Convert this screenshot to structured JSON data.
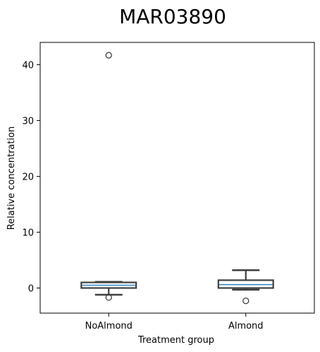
{
  "chart_data": {
    "type": "box",
    "title": "MAR03890",
    "xlabel": "Treatment group",
    "ylabel": "Relative concentration",
    "categories": [
      "NoAlmond",
      "Almond"
    ],
    "yticks": [
      0,
      10,
      20,
      30,
      40
    ],
    "ylim": [
      -4.5,
      44
    ],
    "grid": false,
    "legend": "none",
    "boxes": [
      {
        "category": "NoAlmond",
        "whisker_low": -1.2,
        "q1": 0.0,
        "median": 0.5,
        "q3": 1.0,
        "whisker_high": 1.1,
        "outliers": [
          41.7,
          -1.7
        ]
      },
      {
        "category": "Almond",
        "whisker_low": -0.3,
        "q1": 0.0,
        "median": 0.6,
        "q3": 1.4,
        "whisker_high": 3.2,
        "outliers": [
          -2.3
        ]
      }
    ],
    "colors": {
      "box_edge": "#3f3f3f",
      "median": "#3b8bc4",
      "outlier_edge": "#3f3f3f",
      "frame": "#000000"
    }
  }
}
